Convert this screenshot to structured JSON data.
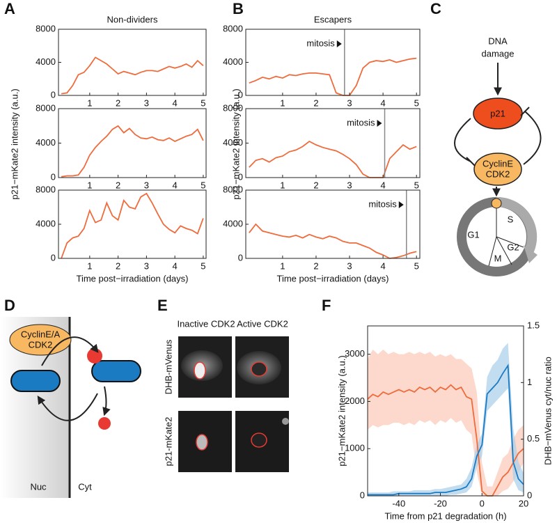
{
  "panel_labels": [
    "A",
    "B",
    "C",
    "D",
    "E",
    "F"
  ],
  "diagram_c": {
    "dna_damage": [
      "DNA",
      "damage"
    ],
    "p21": "p21",
    "cyclin": [
      "CyclinE",
      "CDK2"
    ],
    "phases": [
      "G1",
      "S",
      "G2",
      "M"
    ]
  },
  "diagram_d": {
    "cyclin": [
      "CyclinE/A",
      "CDK2"
    ],
    "nuc": "Nuc",
    "cyt": "Cyt"
  },
  "images_e": {
    "columns": [
      "Inactive CDK2",
      "Active CDK2"
    ],
    "rows": [
      "DHB-mVenus",
      "p21-mKate2"
    ]
  },
  "chart_data": [
    {
      "type": "line",
      "title": "Non-dividers",
      "x": [
        0,
        0.2,
        0.4,
        0.6,
        0.8,
        1,
        1.2,
        1.4,
        1.6,
        1.8,
        2,
        2.2,
        2.4,
        2.6,
        2.8,
        3,
        3.2,
        3.4,
        3.6,
        3.8,
        4,
        4.2,
        4.4,
        4.6,
        4.8,
        5
      ],
      "series": [
        {
          "color": "#ef6b3c",
          "values": [
            200,
            300,
            1200,
            2500,
            2800,
            3600,
            4600,
            4200,
            3800,
            3200,
            2600,
            2900,
            2700,
            2500,
            2800,
            3000,
            3000,
            2900,
            3200,
            3500,
            3300,
            3500,
            3800,
            3400,
            4200,
            3600
          ]
        }
      ],
      "xlim": [
        -0.1,
        5.1
      ],
      "ylim": [
        0,
        8000
      ],
      "xticks": [
        1,
        2,
        3,
        4,
        5
      ],
      "yticks": [
        0,
        4000,
        8000
      ]
    },
    {
      "type": "line",
      "x": [
        0,
        0.2,
        0.4,
        0.6,
        0.8,
        1,
        1.2,
        1.4,
        1.6,
        1.8,
        2,
        2.2,
        2.4,
        2.6,
        2.8,
        3,
        3.2,
        3.4,
        3.6,
        3.8,
        4,
        4.2,
        4.4,
        4.6,
        4.8,
        5
      ],
      "series": [
        {
          "color": "#ef6b3c",
          "values": [
            100,
            200,
            200,
            300,
            1200,
            2600,
            3500,
            4200,
            4800,
            5600,
            6000,
            5200,
            5700,
            5000,
            4600,
            4500,
            4700,
            4400,
            4300,
            4600,
            4200,
            4500,
            4800,
            5000,
            5600,
            4300
          ]
        }
      ],
      "xlim": [
        -0.1,
        5.1
      ],
      "ylim": [
        0,
        8000
      ],
      "xticks": [
        1,
        2,
        3,
        4,
        5
      ],
      "yticks": [
        0,
        4000,
        8000
      ],
      "ylabel": "p21−mKate2 intensity (a.u.)"
    },
    {
      "type": "line",
      "x": [
        0,
        0.2,
        0.4,
        0.6,
        0.8,
        1,
        1.2,
        1.4,
        1.6,
        1.8,
        2,
        2.2,
        2.4,
        2.6,
        2.8,
        3,
        3.2,
        3.4,
        3.6,
        3.8,
        4,
        4.2,
        4.4,
        4.6,
        4.8,
        5
      ],
      "series": [
        {
          "color": "#ef6b3c",
          "values": [
            0,
            1800,
            2400,
            2600,
            3500,
            5600,
            4200,
            4500,
            6500,
            5000,
            4500,
            6800,
            6000,
            5800,
            7200,
            7600,
            6500,
            5200,
            4000,
            3400,
            3000,
            3800,
            3500,
            3300,
            2900,
            4700
          ]
        }
      ],
      "xlim": [
        -0.1,
        5.1
      ],
      "ylim": [
        0,
        8000
      ],
      "xticks": [
        1,
        2,
        3,
        4,
        5
      ],
      "yticks": [
        0,
        4000,
        8000
      ],
      "xlabel": "Time post−irradiation (days)"
    },
    {
      "type": "line",
      "title": "Escapers",
      "x": [
        0,
        0.2,
        0.4,
        0.6,
        0.8,
        1,
        1.2,
        1.4,
        1.6,
        1.8,
        2,
        2.2,
        2.4,
        2.6,
        2.8,
        3,
        3.2,
        3.4,
        3.6,
        3.8,
        4,
        4.2,
        4.4,
        4.6,
        4.8,
        5
      ],
      "series": [
        {
          "color": "#ef6b3c",
          "values": [
            1500,
            1800,
            2200,
            2000,
            2300,
            2100,
            2500,
            2400,
            2600,
            2700,
            2700,
            2600,
            2500,
            300,
            0,
            0,
            1200,
            3300,
            4000,
            4200,
            4100,
            4300,
            4000,
            4200,
            4400,
            4500
          ]
        }
      ],
      "annotations": [
        {
          "text": "mitosis",
          "x": 2.85
        }
      ],
      "xlim": [
        -0.1,
        5.1
      ],
      "ylim": [
        0,
        8000
      ],
      "xticks": [
        1,
        2,
        3,
        4,
        5
      ],
      "yticks": [
        0,
        4000,
        8000
      ]
    },
    {
      "type": "line",
      "x": [
        0,
        0.2,
        0.4,
        0.6,
        0.8,
        1,
        1.2,
        1.4,
        1.6,
        1.8,
        2,
        2.2,
        2.4,
        2.6,
        2.8,
        3,
        3.2,
        3.4,
        3.6,
        3.8,
        4,
        4.2,
        4.4,
        4.6,
        4.8,
        5
      ],
      "series": [
        {
          "color": "#ef6b3c",
          "values": [
            1200,
            2000,
            2200,
            1800,
            2300,
            2500,
            3000,
            3200,
            3600,
            4200,
            3800,
            3500,
            3300,
            3100,
            2700,
            2200,
            1500,
            400,
            0,
            0,
            0,
            2200,
            3000,
            3800,
            3300,
            3600
          ]
        }
      ],
      "annotations": [
        {
          "text": "mitosis",
          "x": 4.05
        }
      ],
      "xlim": [
        -0.1,
        5.1
      ],
      "ylim": [
        0,
        8000
      ],
      "xticks": [
        1,
        2,
        3,
        4,
        5
      ],
      "yticks": [
        0,
        4000,
        8000
      ],
      "ylabel": "p21−mKate2 intensity (a.u.)"
    },
    {
      "type": "line",
      "x": [
        0,
        0.2,
        0.4,
        0.6,
        0.8,
        1,
        1.2,
        1.4,
        1.6,
        1.8,
        2,
        2.2,
        2.4,
        2.6,
        2.8,
        3,
        3.2,
        3.4,
        3.6,
        3.8,
        4,
        4.2,
        4.4,
        4.6,
        4.8,
        5
      ],
      "series": [
        {
          "color": "#ef6b3c",
          "values": [
            3000,
            4000,
            3200,
            3000,
            2800,
            2600,
            2500,
            2700,
            2400,
            2800,
            2500,
            2300,
            2600,
            2400,
            2000,
            1800,
            1800,
            1500,
            1200,
            700,
            400,
            0,
            100,
            300,
            600,
            800
          ]
        }
      ],
      "annotations": [
        {
          "text": "mitosis",
          "x": 4.7
        }
      ],
      "xlim": [
        -0.1,
        5.1
      ],
      "ylim": [
        0,
        8000
      ],
      "xticks": [
        1,
        2,
        3,
        4,
        5
      ],
      "yticks": [
        0,
        4000,
        8000
      ],
      "xlabel": "Time post−irradiation (days)"
    },
    {
      "type": "line",
      "ylabel": "p21−mKate2 intensity (a.u.)",
      "y2label": "DHB−mVenus cyt/nuc ratio",
      "xlabel": "Time from p21 degradation (h)",
      "x": [
        -55,
        -52.5,
        -50,
        -47.5,
        -45,
        -42.5,
        -40,
        -37.5,
        -35,
        -32.5,
        -30,
        -27.5,
        -25,
        -22.5,
        -20,
        -17.5,
        -15,
        -12.5,
        -10,
        -7.5,
        -5,
        -2.5,
        0,
        2.5,
        5,
        7.5,
        10,
        12.5,
        15,
        17.5,
        20
      ],
      "series": [
        {
          "color": "#ef6b3c",
          "band_color": "#fbc9b6",
          "values": [
            2050,
            2150,
            2100,
            2200,
            2150,
            2200,
            2250,
            2200,
            2250,
            2200,
            2300,
            2250,
            2300,
            2200,
            2300,
            2250,
            2350,
            2250,
            2300,
            2100,
            2050,
            1200,
            100,
            0,
            0,
            200,
            400,
            500,
            700,
            900,
            1000
          ],
          "lower": [
            1400,
            1500,
            1450,
            1500,
            1500,
            1550,
            1550,
            1500,
            1550,
            1500,
            1600,
            1550,
            1600,
            1500,
            1600,
            1550,
            1650,
            1550,
            1600,
            1400,
            1300,
            500,
            0,
            0,
            0,
            0,
            100,
            150,
            300,
            500,
            700
          ],
          "upper": [
            2900,
            3100,
            3000,
            3100,
            3000,
            3050,
            3000,
            3000,
            3050,
            3000,
            3050,
            3000,
            3050,
            2950,
            3000,
            2950,
            3000,
            2900,
            2900,
            2800,
            2700,
            2200,
            700,
            200,
            200,
            500,
            800,
            900,
            1200,
            1400,
            1500
          ]
        },
        {
          "color": "#1a7bc2",
          "band_color": "#a9cfe9",
          "axis": "y2",
          "values": [
            0.01,
            0.01,
            0.01,
            0.01,
            0.01,
            0.01,
            0.02,
            0.02,
            0.02,
            0.02,
            0.02,
            0.02,
            0.02,
            0.03,
            0.03,
            0.03,
            0.04,
            0.05,
            0.06,
            0.08,
            0.15,
            0.35,
            0.45,
            0.9,
            0.95,
            1,
            1.08,
            1.15,
            0.3,
            0.15,
            0.1
          ],
          "lower": [
            0,
            0,
            0,
            0,
            0,
            0,
            0,
            0,
            0,
            0,
            0,
            0,
            0,
            0,
            0,
            0,
            0.01,
            0.01,
            0.02,
            0.03,
            0.08,
            0.25,
            0.35,
            0.75,
            0.8,
            0.85,
            0.9,
            0.95,
            0.15,
            0.05,
            0.03
          ],
          "upper": [
            0.03,
            0.03,
            0.03,
            0.03,
            0.03,
            0.04,
            0.04,
            0.04,
            0.04,
            0.05,
            0.05,
            0.05,
            0.05,
            0.06,
            0.06,
            0.07,
            0.08,
            0.09,
            0.1,
            0.15,
            0.25,
            0.45,
            0.55,
            1.05,
            1.15,
            1.2,
            1.3,
            1.35,
            0.6,
            0.3,
            0.2
          ]
        }
      ],
      "xlim": [
        -55,
        20
      ],
      "ylim": [
        0,
        3600
      ],
      "xticks": [
        -40,
        -20,
        0,
        20
      ],
      "yticks": [
        0,
        1000,
        2000,
        3000
      ],
      "y2lim": [
        0,
        1.5
      ],
      "y2ticks": [
        0,
        0.5,
        1,
        1.5
      ]
    }
  ]
}
